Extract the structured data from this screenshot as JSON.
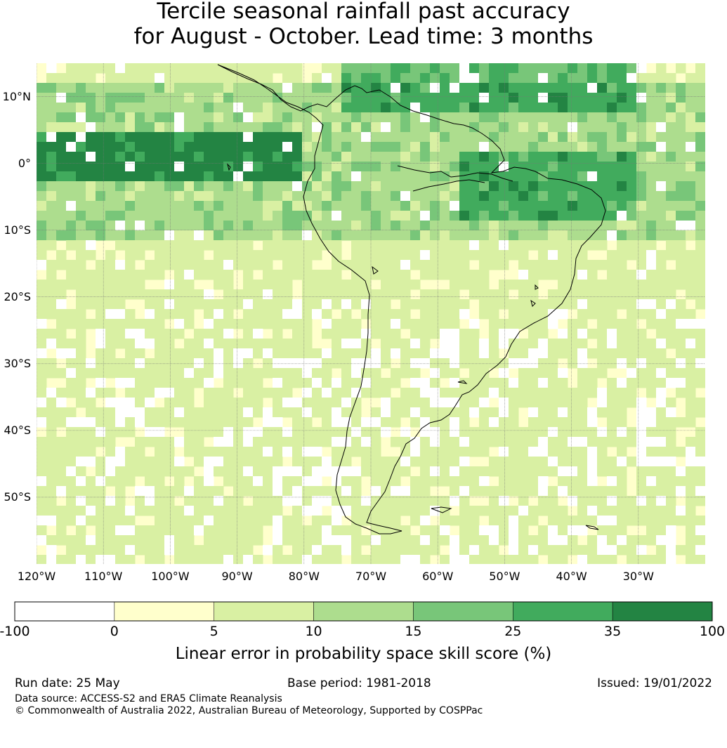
{
  "title_line1": "Tercile seasonal rainfall past accuracy",
  "title_line2": "for August - October. Lead time: 3 months",
  "map": {
    "lon_range": [
      -120,
      -20
    ],
    "lat_range": [
      -60,
      15
    ],
    "lat_labels": [
      "10°N",
      "0°",
      "10°S",
      "20°S",
      "30°S",
      "40°S",
      "50°S"
    ],
    "lat_values": [
      10,
      0,
      -10,
      -20,
      -30,
      -40,
      -50
    ],
    "lon_labels": [
      "120°W",
      "110°W",
      "100°W",
      "90°W",
      "80°W",
      "70°W",
      "60°W",
      "50°W",
      "40°W",
      "30°W"
    ],
    "lon_values": [
      -120,
      -110,
      -100,
      -90,
      -80,
      -70,
      -60,
      -50,
      -40,
      -30
    ],
    "gridlines": true,
    "high_skill_regions": [
      {
        "name": "equatorial-pacific",
        "lon": [
          -120,
          -80
        ],
        "lat": [
          -3,
          5
        ],
        "level": 35
      },
      {
        "name": "equatorial-atlantic",
        "lon": [
          -57,
          -30
        ],
        "lat": [
          -8,
          2
        ],
        "level": 25
      },
      {
        "name": "caribbean",
        "lon": [
          -75,
          -30
        ],
        "lat": [
          7,
          15
        ],
        "level": 25
      }
    ]
  },
  "colorbar": {
    "boundaries": [
      "-100",
      "0",
      "5",
      "10",
      "15",
      "25",
      "35",
      "100"
    ],
    "colors": [
      "#ffffff",
      "#ffffcc",
      "#d9f0a3",
      "#addd8e",
      "#78c679",
      "#41ab5d",
      "#238443"
    ],
    "label": "Linear error in probability space skill score (%)"
  },
  "footer": {
    "run_date": "Run date: 25 May",
    "base_period": "Base period: 1981-2018",
    "issued": "Issued: 19/01/2022",
    "data_source": "Data source: ACCESS-S2 and ERA5 Climate Reanalysis",
    "copyright": "© Commonwealth of Australia 2022, Australian Bureau of Meteorology, Supported by COSPPac"
  }
}
